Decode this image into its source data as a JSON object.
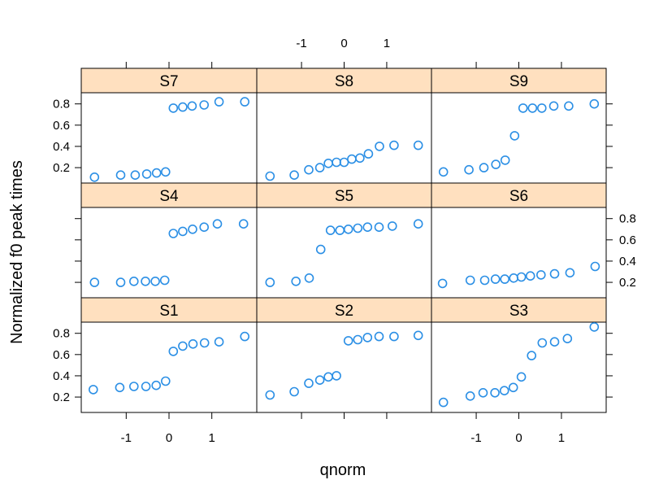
{
  "chart_data": {
    "type": "scatter",
    "xlabel": "qnorm",
    "ylabel": "Normalized f0 peak times",
    "xlim": [
      -2.05,
      2.05
    ],
    "ylim": [
      0.055,
      0.905
    ],
    "x_ticks": [
      -1,
      0,
      1
    ],
    "x_tick_labels": [
      "-1",
      "0",
      "1"
    ],
    "y_ticks": [
      0.2,
      0.4,
      0.6,
      0.8
    ],
    "y_tick_labels": [
      "0.2",
      "0.4",
      "0.6",
      "0.8"
    ],
    "layout": {
      "columns": 3,
      "rows": 3
    },
    "style": {
      "point_color": "#2b8fe5",
      "strip_color": "#ffe0bf",
      "frame_color": "#000000"
    },
    "panels": [
      {
        "label": "S7",
        "x": [
          -1.74,
          -1.13,
          -0.79,
          -0.52,
          -0.29,
          -0.08,
          0.1,
          0.32,
          0.54,
          0.82,
          1.17,
          1.77
        ],
        "y": [
          0.11,
          0.13,
          0.13,
          0.14,
          0.15,
          0.16,
          0.76,
          0.77,
          0.78,
          0.79,
          0.82,
          0.82
        ]
      },
      {
        "label": "S8",
        "x": [
          -1.74,
          -1.17,
          -0.83,
          -0.57,
          -0.37,
          -0.18,
          0.0,
          0.18,
          0.37,
          0.57,
          0.83,
          1.17,
          1.74
        ],
        "y": [
          0.12,
          0.13,
          0.18,
          0.2,
          0.24,
          0.25,
          0.25,
          0.28,
          0.29,
          0.33,
          0.4,
          0.41,
          0.41
        ]
      },
      {
        "label": "S9",
        "x": [
          -1.77,
          -1.17,
          -0.82,
          -0.54,
          -0.32,
          -0.1,
          0.1,
          0.32,
          0.54,
          0.82,
          1.17,
          1.77
        ],
        "y": [
          0.16,
          0.18,
          0.2,
          0.23,
          0.27,
          0.5,
          0.76,
          0.76,
          0.76,
          0.78,
          0.78,
          0.8
        ]
      },
      {
        "label": "S4",
        "x": [
          -1.74,
          -1.13,
          -0.82,
          -0.55,
          -0.32,
          -0.1,
          0.1,
          0.32,
          0.55,
          0.82,
          1.13,
          1.74
        ],
        "y": [
          0.2,
          0.2,
          0.21,
          0.21,
          0.21,
          0.22,
          0.66,
          0.68,
          0.7,
          0.72,
          0.75,
          0.75
        ]
      },
      {
        "label": "S5",
        "x": [
          -1.74,
          -1.13,
          -0.82,
          -0.55,
          -0.32,
          -0.1,
          0.1,
          0.32,
          0.55,
          0.82,
          1.13,
          1.74
        ],
        "y": [
          0.2,
          0.21,
          0.24,
          0.51,
          0.69,
          0.69,
          0.7,
          0.71,
          0.72,
          0.72,
          0.73,
          0.75
        ]
      },
      {
        "label": "S6",
        "x": [
          -1.79,
          -1.14,
          -0.8,
          -0.55,
          -0.33,
          -0.12,
          0.06,
          0.27,
          0.52,
          0.84,
          1.2,
          1.79
        ],
        "y": [
          0.19,
          0.22,
          0.22,
          0.23,
          0.23,
          0.24,
          0.25,
          0.26,
          0.27,
          0.28,
          0.29,
          0.35
        ]
      },
      {
        "label": "S1",
        "x": [
          -1.77,
          -1.15,
          -0.82,
          -0.54,
          -0.3,
          -0.08,
          0.1,
          0.32,
          0.56,
          0.83,
          1.17,
          1.77
        ],
        "y": [
          0.27,
          0.29,
          0.3,
          0.3,
          0.31,
          0.35,
          0.63,
          0.68,
          0.7,
          0.71,
          0.72,
          0.77
        ]
      },
      {
        "label": "S2",
        "x": [
          -1.74,
          -1.17,
          -0.83,
          -0.57,
          -0.37,
          -0.18,
          0.1,
          0.32,
          0.55,
          0.82,
          1.17,
          1.74
        ],
        "y": [
          0.22,
          0.25,
          0.33,
          0.36,
          0.39,
          0.4,
          0.73,
          0.74,
          0.76,
          0.77,
          0.77,
          0.78
        ]
      },
      {
        "label": "S3",
        "x": [
          -1.77,
          -1.14,
          -0.84,
          -0.56,
          -0.34,
          -0.13,
          0.06,
          0.3,
          0.55,
          0.84,
          1.14,
          1.77
        ],
        "y": [
          0.15,
          0.21,
          0.24,
          0.24,
          0.26,
          0.29,
          0.39,
          0.59,
          0.71,
          0.72,
          0.75,
          0.86
        ]
      }
    ]
  }
}
